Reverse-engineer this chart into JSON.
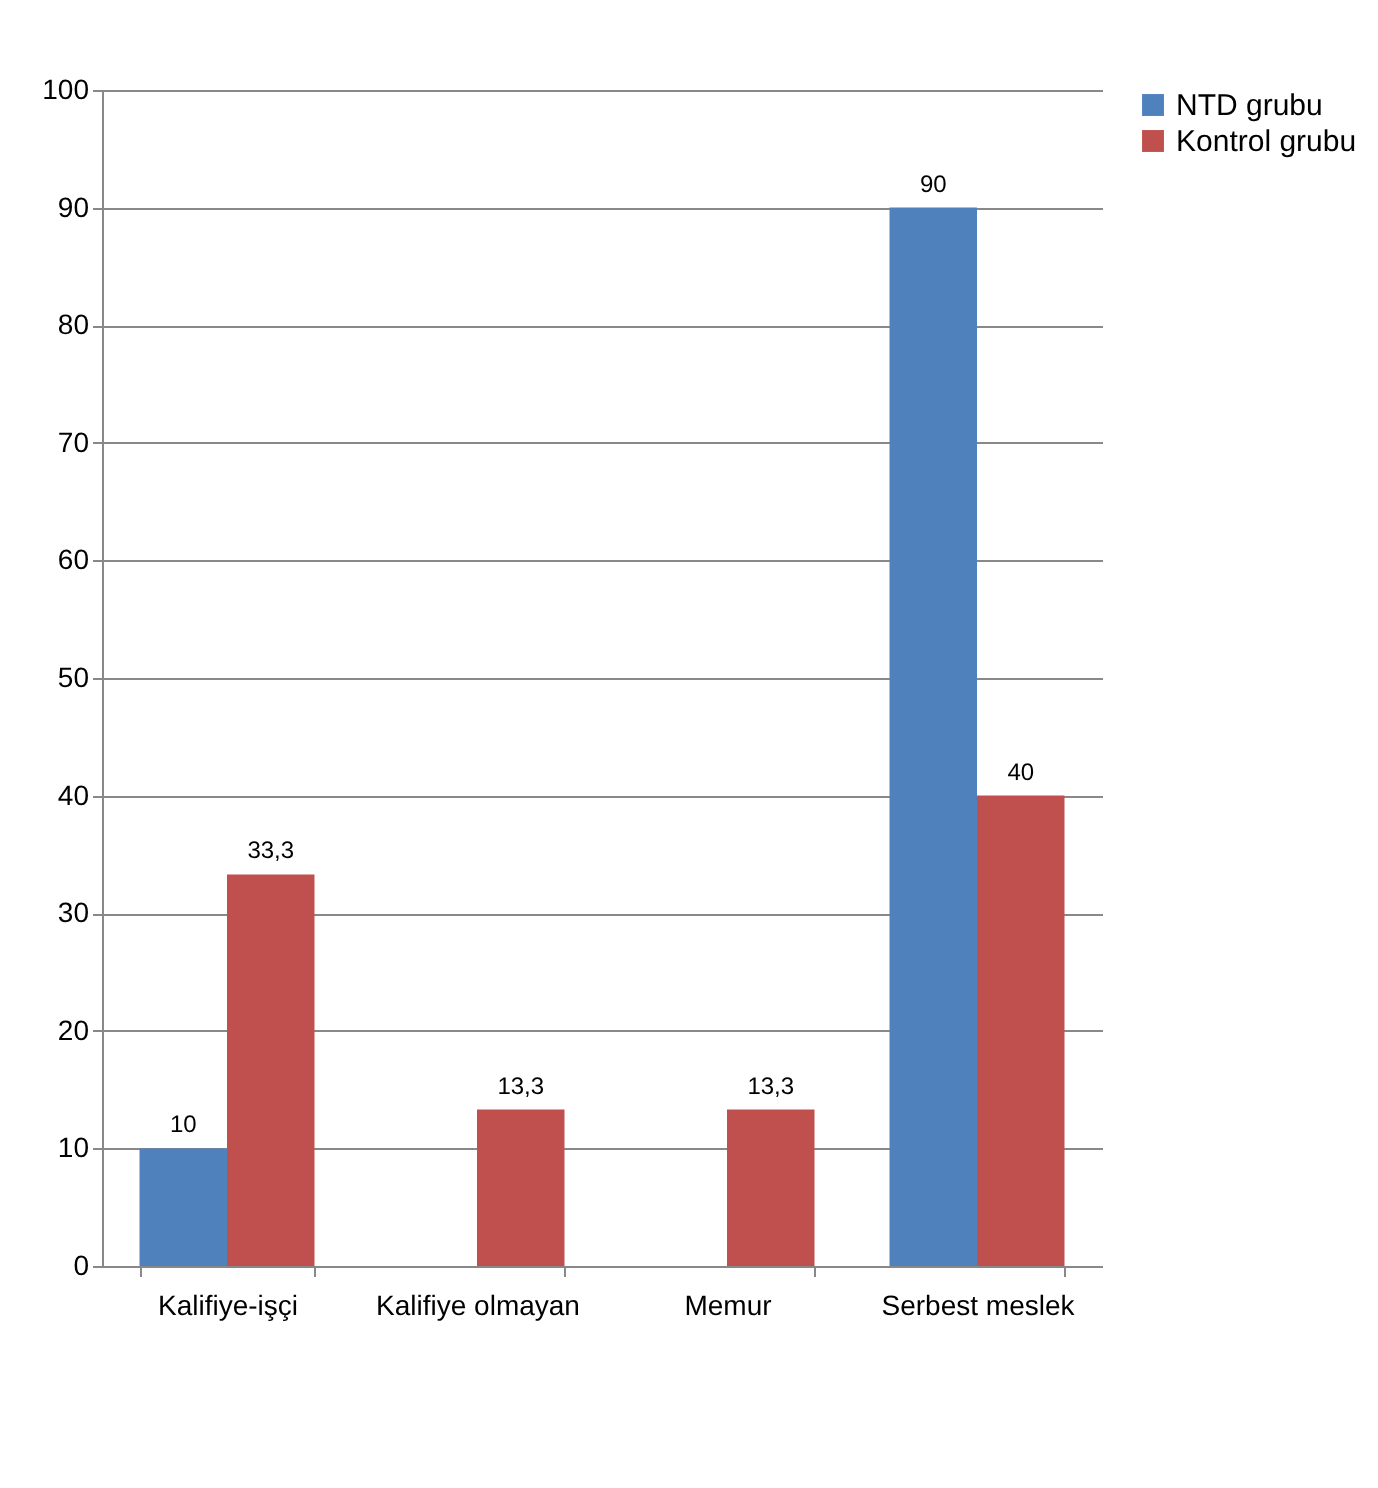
{
  "chart_data": {
    "type": "bar",
    "categories": [
      "Kalifiye-işçi",
      "Kalifiye olmayan",
      "Memur",
      "Serbest meslek"
    ],
    "series": [
      {
        "name": "NTD grubu",
        "color": "#4f81bd",
        "values": [
          10,
          null,
          null,
          90
        ],
        "value_labels": [
          "10",
          null,
          null,
          "90"
        ]
      },
      {
        "name": "Kontrol grubu",
        "color": "#c0504d",
        "values": [
          33.3,
          13.3,
          13.3,
          40
        ],
        "value_labels": [
          "33,3",
          "13,3",
          "13,3",
          "40"
        ]
      }
    ],
    "ylim": [
      0,
      100
    ],
    "yticks": [
      0,
      10,
      20,
      30,
      40,
      50,
      60,
      70,
      80,
      90,
      100
    ],
    "grid": "y",
    "legend": "right"
  }
}
